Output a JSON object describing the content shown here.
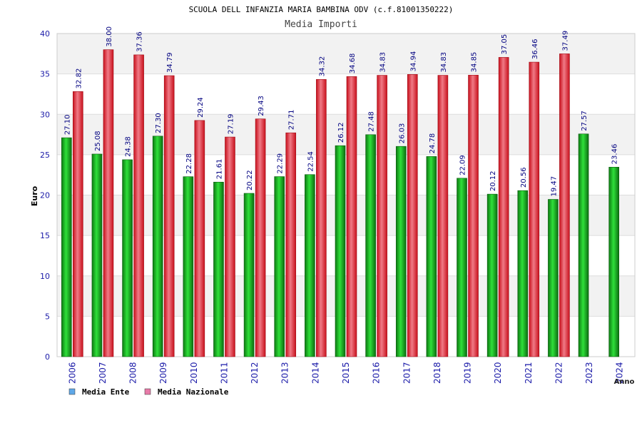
{
  "chart_data": {
    "type": "bar",
    "title": "SCUOLA DELL INFANZIA MARIA BAMBINA ODV (c.f.81001350222)",
    "subtitle": "Media Importi",
    "ylabel": "Euro",
    "xlabel": "Anno",
    "ylim": [
      0,
      40
    ],
    "yticks": [
      0,
      5,
      10,
      15,
      20,
      25,
      30,
      35,
      40
    ],
    "categories": [
      "2006",
      "2007",
      "2008",
      "2009",
      "2010",
      "2011",
      "2012",
      "2013",
      "2014",
      "2015",
      "2016",
      "2017",
      "2018",
      "2019",
      "2020",
      "2021",
      "2022",
      "2023",
      "2024"
    ],
    "series": [
      {
        "name": "Media Ente",
        "color": "#00a000",
        "values": [
          27.1,
          25.08,
          24.38,
          27.3,
          22.28,
          21.61,
          20.22,
          22.29,
          22.54,
          26.12,
          27.48,
          26.03,
          24.78,
          22.09,
          20.12,
          20.56,
          19.47,
          27.57,
          23.46
        ],
        "labels": [
          "27.10",
          "25.08",
          "24.38",
          "27.30",
          "22.28",
          "21.61",
          "20.22",
          "22.29",
          "22.54",
          "26.12",
          "27.48",
          "26.03",
          "24.78",
          "22.09",
          "20.12",
          "20.56",
          "19.47",
          "27.57",
          "23.46"
        ]
      },
      {
        "name": "Media Nazionale",
        "color": "#e8202a",
        "values": [
          32.82,
          38.0,
          37.36,
          34.79,
          29.24,
          27.19,
          29.43,
          27.71,
          34.32,
          34.68,
          34.83,
          34.94,
          34.83,
          34.85,
          37.05,
          36.46,
          37.49,
          null,
          null
        ],
        "labels": [
          "32.82",
          "38.00",
          "37.36",
          "34.79",
          "29.24",
          "27.19",
          "29.43",
          "27.71",
          "34.32",
          "34.68",
          "34.83",
          "34.94",
          "34.83",
          "34.85",
          "37.05",
          "36.46",
          "37.49",
          null,
          null
        ]
      }
    ],
    "legend": [
      {
        "label": "Media Ente",
        "swatch_color": "#5fa8e8"
      },
      {
        "label": "Media Nazionale",
        "swatch_color": "#e87aa8"
      }
    ],
    "legend_position": "bottom-left",
    "grid": true
  }
}
